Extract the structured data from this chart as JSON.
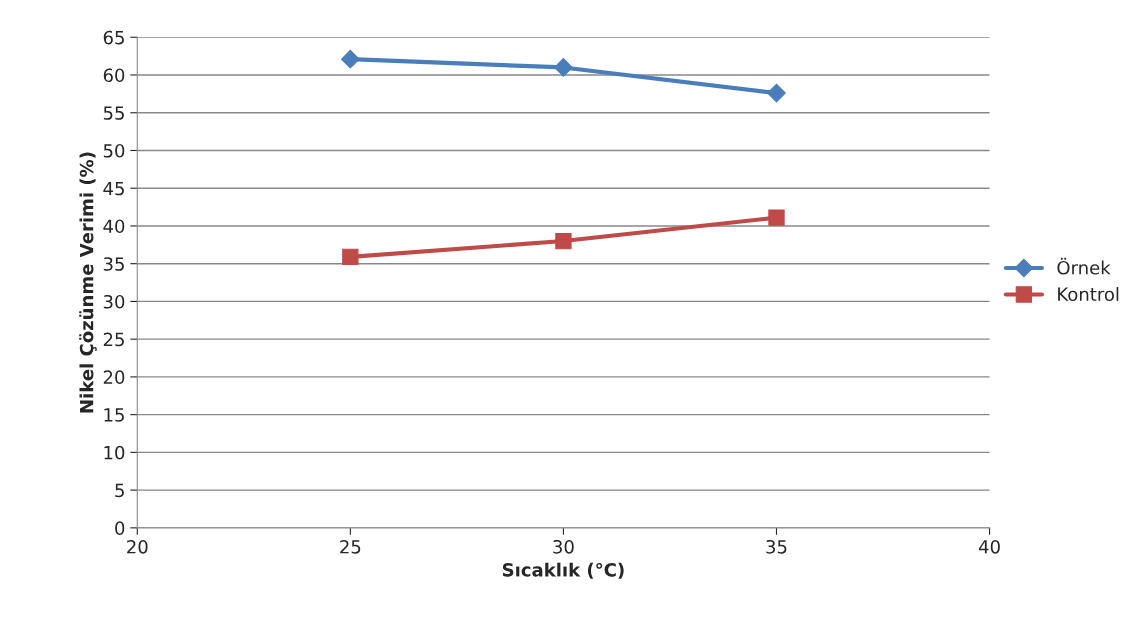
{
  "chart_data": {
    "type": "line",
    "xlabel": "Sıcaklık (°C)",
    "ylabel": "Nikel Çözünme Verimi (%)",
    "x": [
      25,
      30,
      35
    ],
    "series": [
      {
        "name": "Örnek",
        "color": "#4a7ebb",
        "values": [
          62.1,
          61.0,
          57.6
        ],
        "marker": "diamond"
      },
      {
        "name": "Kontrol",
        "color": "#be4b48",
        "values": [
          35.9,
          38.0,
          41.1
        ],
        "marker": "square"
      }
    ],
    "xlim": [
      20,
      40
    ],
    "xticks": [
      20,
      25,
      30,
      35,
      40
    ],
    "ylim": [
      0,
      65
    ],
    "yticks": [
      0,
      5,
      10,
      15,
      20,
      25,
      30,
      35,
      40,
      45,
      50,
      55,
      60,
      65
    ],
    "grid": "y",
    "legend": "right",
    "line_style": "solid"
  }
}
